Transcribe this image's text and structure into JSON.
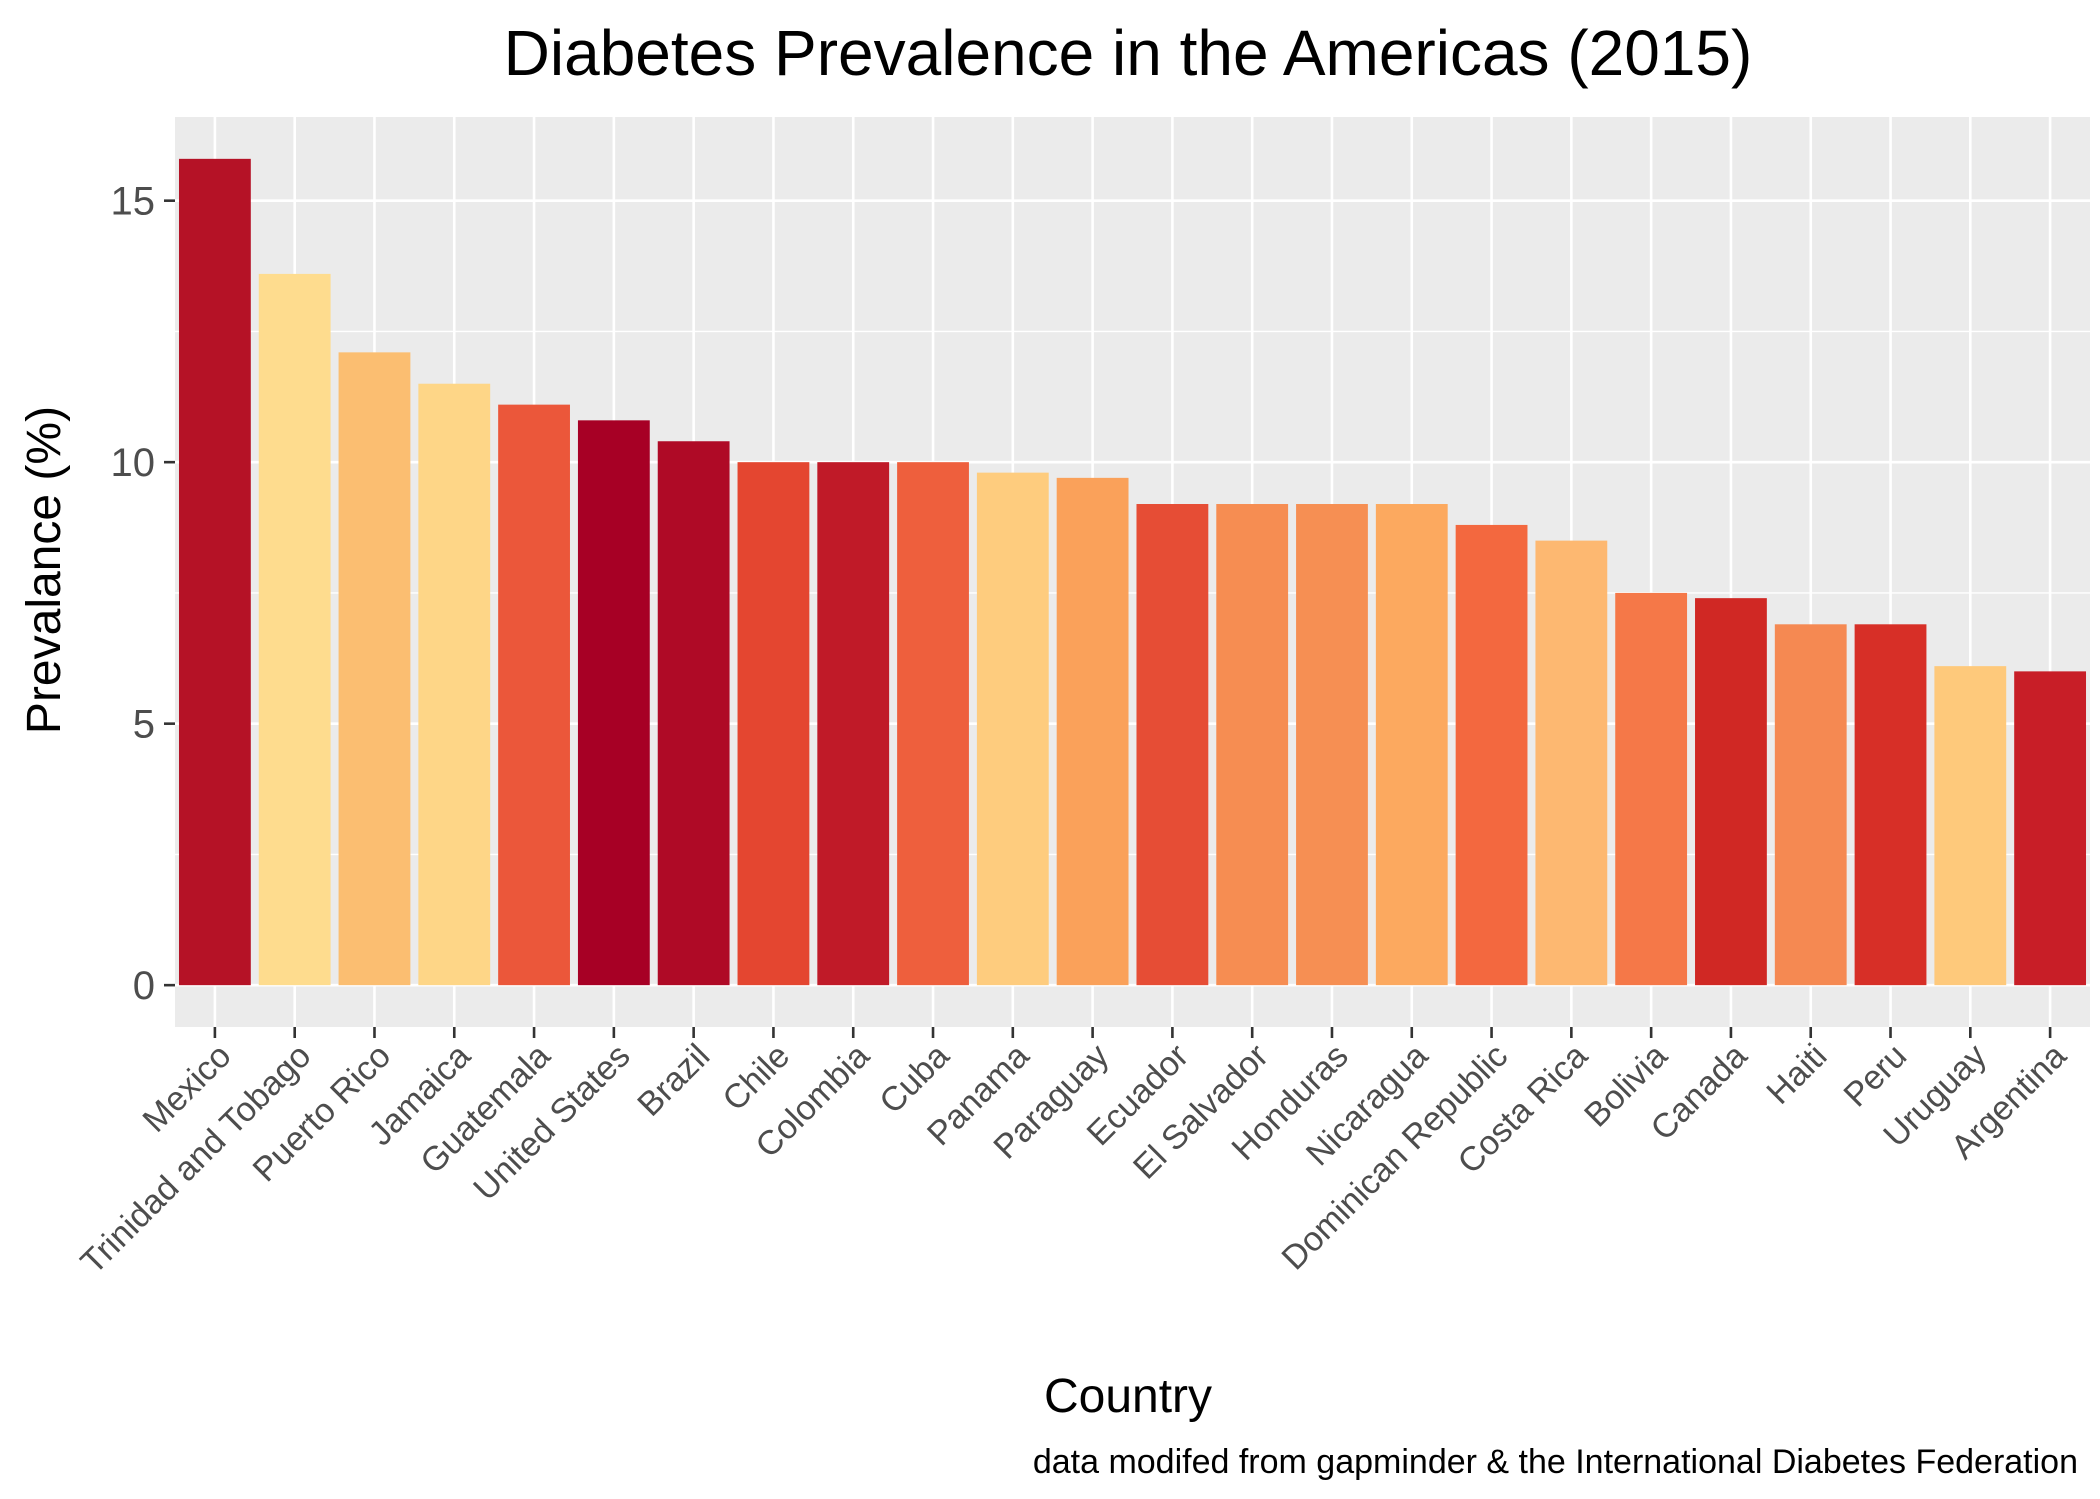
{
  "chart_data": {
    "type": "bar",
    "title": "Diabetes Prevalence in the Americas (2015)",
    "xlabel": "Country",
    "ylabel": "Prevalance (%)",
    "caption": "data modifed from gapminder & the International Diabetes Federation",
    "categories": [
      "Mexico",
      "Trinidad and Tobago",
      "Puerto Rico",
      "Jamaica",
      "Guatemala",
      "United States",
      "Brazil",
      "Chile",
      "Colombia",
      "Cuba",
      "Panama",
      "Paraguay",
      "Ecuador",
      "El Salvador",
      "Honduras",
      "Nicaragua",
      "Dominican Republic",
      "Costa Rica",
      "Bolivia",
      "Canada",
      "Haiti",
      "Peru",
      "Uruguay",
      "Argentina"
    ],
    "values": [
      15.8,
      13.6,
      12.1,
      11.5,
      11.1,
      10.8,
      10.4,
      10.0,
      10.0,
      10.0,
      9.8,
      9.7,
      9.2,
      9.2,
      9.2,
      9.2,
      8.8,
      8.5,
      7.5,
      7.4,
      6.9,
      6.9,
      6.1,
      6.0
    ],
    "colors": [
      "#B51226",
      "#FEDC8E",
      "#FBBE71",
      "#FED687",
      "#EB573A",
      "#A70025",
      "#AF0A26",
      "#E44630",
      "#C01A28",
      "#EE5F3D",
      "#FECC7E",
      "#FAA15A",
      "#E64D35",
      "#F68D52",
      "#F68F53",
      "#FCA95F",
      "#F3683F",
      "#FDB871",
      "#F57848",
      "#D02824",
      "#F58952",
      "#D72F27",
      "#FEC97B",
      "#C81E27"
    ],
    "ylim": [
      -0.8,
      16.6
    ],
    "yticks": [
      0,
      5,
      10,
      15
    ],
    "grid": true,
    "legend": "none"
  }
}
